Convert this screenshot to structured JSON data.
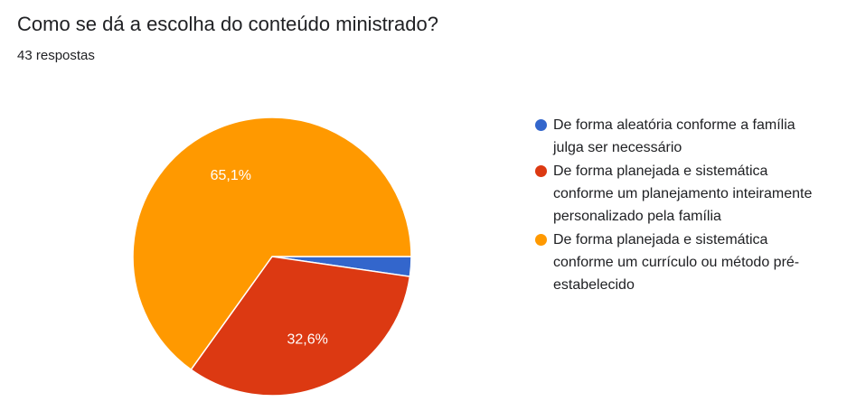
{
  "header": {
    "title": "Como se dá a escolha do conteúdo ministrado?",
    "response_count": "43 respostas"
  },
  "chart_data": {
    "type": "pie",
    "title": "Como se dá a escolha do conteúdo ministrado?",
    "slices": [
      {
        "label": "De forma aleatória conforme a família julga ser necessário",
        "value": 2.3,
        "color": "#3366cc",
        "data_label": ""
      },
      {
        "label": "De forma planejada e sistemática conforme um planejamento inteiramente personalizado pela família",
        "value": 32.6,
        "color": "#dc3912",
        "data_label": "32,6%"
      },
      {
        "label": "De forma planejada e sistemática conforme um currículo ou método pré-estabelecido",
        "value": 65.1,
        "color": "#ff9900",
        "data_label": "65,1%"
      }
    ],
    "legend_position": "right"
  },
  "legend": {
    "items": [
      {
        "color": "#3366cc",
        "lines": [
          "De forma aleatória conforme a família",
          "julga ser necessário"
        ]
      },
      {
        "color": "#dc3912",
        "lines": [
          "De forma planejada e sistemática",
          "conforme um planejamento inteiramente",
          "personalizado pela família"
        ]
      },
      {
        "color": "#ff9900",
        "lines": [
          "De forma planejada e sistemática",
          "conforme um currículo ou método pré-",
          "estabelecido"
        ]
      }
    ]
  }
}
